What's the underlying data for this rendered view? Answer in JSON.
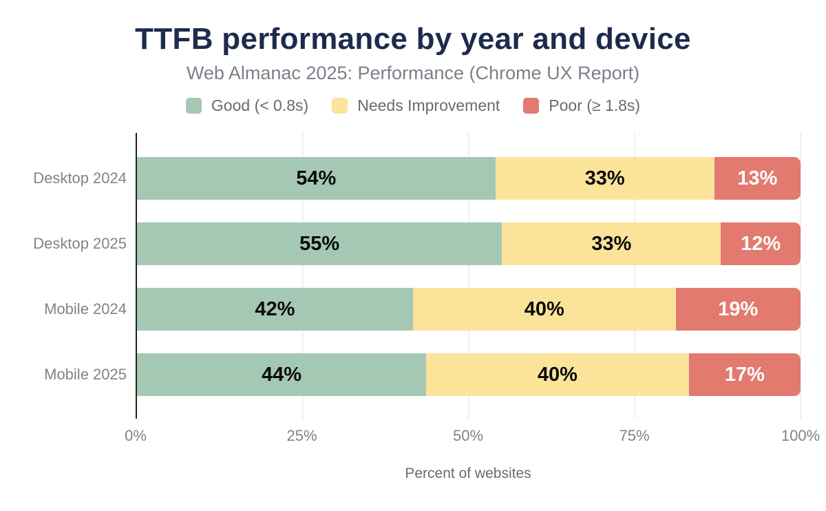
{
  "title": "TTFB performance by year and device",
  "subtitle": "Web Almanac 2025: Performance (Chrome UX Report)",
  "colors": {
    "good": "#a5c8b5",
    "needs_improvement": "#fce39a",
    "poor": "#e27a70",
    "title_text": "#1d2b4d",
    "muted_text": "#7e838b",
    "axis_line": "#1f1f1f",
    "gridline": "#efefef"
  },
  "chart_data": {
    "type": "bar",
    "orientation": "horizontal",
    "stacked": true,
    "title": "TTFB performance by year and device",
    "subtitle": "Web Almanac 2025: Performance (Chrome UX Report)",
    "categories": [
      "Desktop 2024",
      "Desktop 2025",
      "Mobile 2024",
      "Mobile 2025"
    ],
    "series": [
      {
        "name": "Good (< 0.8s)",
        "color": "#a5c8b5",
        "label_color": "#0a0a0a",
        "values": [
          54,
          55,
          42,
          44
        ]
      },
      {
        "name": "Needs Improvement",
        "color": "#fce39a",
        "label_color": "#0a0a0a",
        "values": [
          33,
          33,
          40,
          40
        ]
      },
      {
        "name": "Poor (≥ 1.8s)",
        "color": "#e27a70",
        "label_color": "#ffffff",
        "values": [
          13,
          12,
          19,
          17
        ]
      }
    ],
    "value_suffix": "%",
    "xlabel": "Percent of websites",
    "x_ticks": [
      "0%",
      "25%",
      "50%",
      "75%",
      "100%"
    ],
    "xlim": [
      0,
      100
    ],
    "grid": true,
    "legend_position": "top"
  }
}
